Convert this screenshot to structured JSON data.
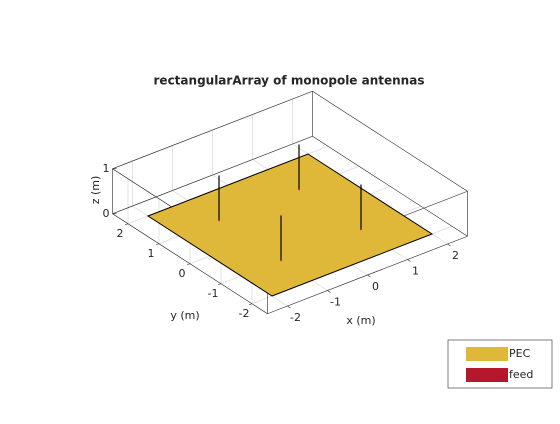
{
  "chart_data": {
    "type": "antenna3d",
    "title": "rectangularArray of monopole antennas",
    "xlabel": "x (m)",
    "ylabel": "y (m)",
    "zlabel": "z (m)",
    "xlim": [
      -2.5,
      2.5
    ],
    "ylim": [
      -2.5,
      2.5
    ],
    "zlim": [
      0,
      1
    ],
    "xticks": [
      -2,
      -1,
      0,
      1,
      2
    ],
    "yticks": [
      -2,
      -1,
      0,
      1,
      2
    ],
    "zticks": [
      0,
      1
    ],
    "grid": true,
    "ground": {
      "x": [
        -2,
        2
      ],
      "y": [
        -2,
        2
      ]
    },
    "elements": {
      "x": [
        -1,
        1,
        -1,
        1
      ],
      "y": [
        -1,
        -1,
        1,
        1
      ],
      "height": [
        1,
        1,
        1,
        1
      ]
    },
    "legend_position": "bottom-right",
    "series": [
      {
        "name": "PEC",
        "color": "#dfb83a"
      },
      {
        "name": "feed",
        "color": "#b5172c"
      }
    ]
  }
}
